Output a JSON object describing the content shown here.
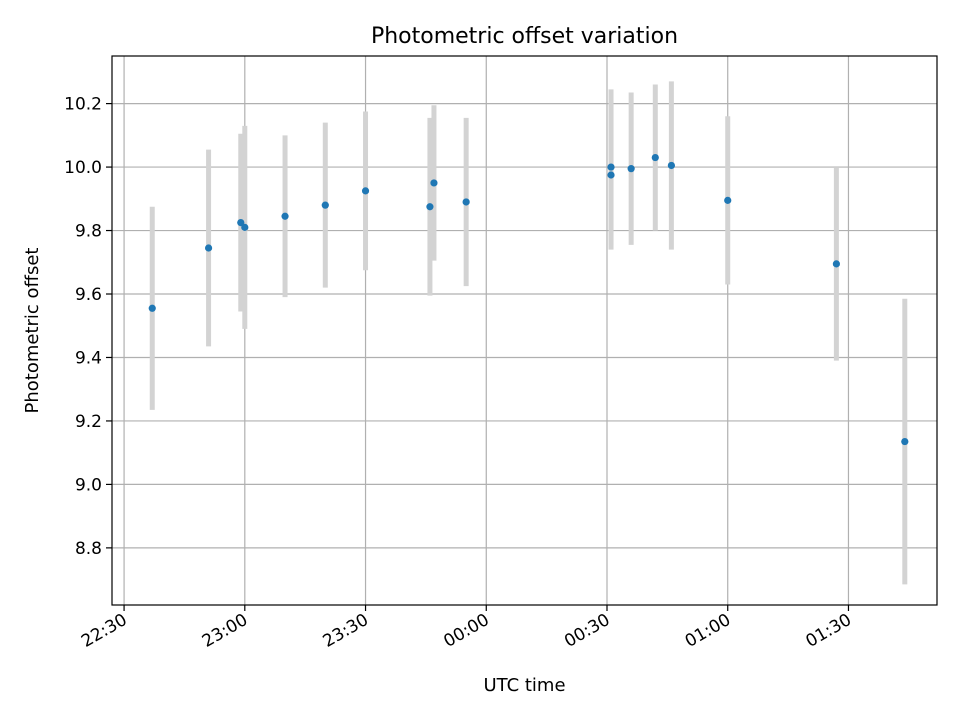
{
  "chart_data": {
    "type": "scatter",
    "title": "Photometric offset variation",
    "xlabel": "UTC time",
    "ylabel": "Photometric offset",
    "x_unit": "hh:mm (UTC)",
    "xlim": [
      "22:27",
      "01:52"
    ],
    "ylim": [
      8.62,
      10.35
    ],
    "grid": true,
    "x_ticks": [
      "22:30",
      "23:00",
      "23:30",
      "00:00",
      "00:30",
      "01:00",
      "01:30"
    ],
    "y_ticks": [
      8.8,
      9.0,
      9.2,
      9.4,
      9.6,
      9.8,
      10.0,
      10.2
    ],
    "y_tick_labels": [
      "8.8",
      "9.0",
      "9.2",
      "9.4",
      "9.6",
      "9.8",
      "10.0",
      "10.2"
    ],
    "point_color": "#1f77b4",
    "errorbar_color": "#d3d3d3",
    "points": [
      {
        "x": "22:37",
        "y": 9.555,
        "err": 0.32
      },
      {
        "x": "22:51",
        "y": 9.745,
        "err": 0.31
      },
      {
        "x": "22:59",
        "y": 9.825,
        "err": 0.28
      },
      {
        "x": "23:00",
        "y": 9.81,
        "err": 0.32
      },
      {
        "x": "23:10",
        "y": 9.845,
        "err": 0.255
      },
      {
        "x": "23:20",
        "y": 9.88,
        "err": 0.26
      },
      {
        "x": "23:30",
        "y": 9.925,
        "err": 0.25
      },
      {
        "x": "23:46",
        "y": 9.875,
        "err": 0.28
      },
      {
        "x": "23:47",
        "y": 9.95,
        "err": 0.245
      },
      {
        "x": "23:55",
        "y": 9.89,
        "err": 0.265
      },
      {
        "x": "00:31",
        "y": 10.0,
        "err": 0.245
      },
      {
        "x": "00:31",
        "y": 9.975,
        "err": 0.235
      },
      {
        "x": "00:36",
        "y": 9.995,
        "err": 0.24
      },
      {
        "x": "00:42",
        "y": 10.03,
        "err": 0.23
      },
      {
        "x": "00:46",
        "y": 10.005,
        "err": 0.265
      },
      {
        "x": "01:00",
        "y": 9.895,
        "err": 0.265
      },
      {
        "x": "01:27",
        "y": 9.695,
        "err": 0.305
      },
      {
        "x": "01:44",
        "y": 9.135,
        "err": 0.45
      }
    ]
  }
}
